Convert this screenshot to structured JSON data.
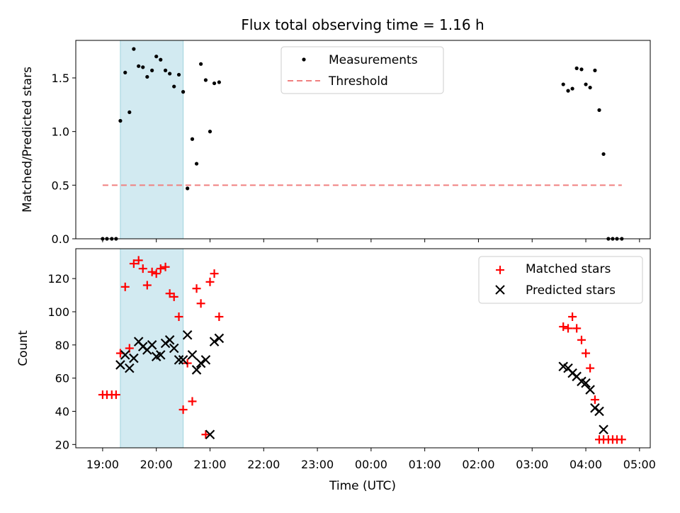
{
  "figure": {
    "title": "Flux total observing time = 1.16 h",
    "xlabel": "Time (UTC)"
  },
  "colors": {
    "measurement": "#000000",
    "threshold": "#f08080",
    "matched": "#ff0000",
    "predicted": "#000000",
    "highlight": "#add8e6"
  },
  "chart_data": [
    {
      "type": "scatter",
      "panel": "top",
      "ylabel": "Matched/Predicted stars",
      "x_unit": "hours since 19:00 UTC axis start",
      "xlim": [
        -0.5,
        10.2
      ],
      "ylim": [
        0.0,
        1.85
      ],
      "yticks": [
        0.0,
        0.5,
        1.0,
        1.5
      ],
      "ytick_labels": [
        "0.0",
        "0.5",
        "1.0",
        "1.5"
      ],
      "shaded_region": [
        0.33,
        1.5
      ],
      "threshold": {
        "name": "Threshold",
        "value": 0.5,
        "x_range": [
          0.0,
          9.67
        ]
      },
      "legend": [
        "Measurements",
        "Threshold"
      ],
      "series": [
        {
          "name": "Measurements",
          "x": [
            0.0,
            0.08,
            0.17,
            0.25,
            0.33,
            0.42,
            0.5,
            0.58,
            0.67,
            0.75,
            0.83,
            0.92,
            1.0,
            1.08,
            1.17,
            1.25,
            1.33,
            1.42,
            1.5,
            1.58,
            1.67,
            1.75,
            1.83,
            1.92,
            2.0,
            2.08,
            2.17,
            8.58,
            8.67,
            8.75,
            8.83,
            8.92,
            9.0,
            9.08,
            9.17,
            9.25,
            9.33,
            9.42,
            9.5,
            9.58,
            9.67
          ],
          "y": [
            0.0,
            0.0,
            0.0,
            0.0,
            1.1,
            1.55,
            1.18,
            1.77,
            1.61,
            1.6,
            1.51,
            1.57,
            1.7,
            1.67,
            1.57,
            1.54,
            1.42,
            1.53,
            1.37,
            0.47,
            0.93,
            0.7,
            1.63,
            1.48,
            1.0,
            1.45,
            1.46,
            1.44,
            1.38,
            1.4,
            1.59,
            1.58,
            1.44,
            1.41,
            1.57,
            1.2,
            0.79,
            0.0,
            0.0,
            0.0,
            0.0
          ]
        }
      ]
    },
    {
      "type": "scatter",
      "panel": "bottom",
      "ylabel": "Count",
      "xlim": [
        -0.5,
        10.2
      ],
      "ylim": [
        18,
        138
      ],
      "yticks": [
        20,
        40,
        60,
        80,
        100,
        120
      ],
      "ytick_labels": [
        "20",
        "40",
        "60",
        "80",
        "100",
        "120"
      ],
      "shaded_region": [
        0.33,
        1.5
      ],
      "xticks": [
        0,
        1,
        2,
        3,
        4,
        5,
        6,
        7,
        8,
        9,
        10
      ],
      "xtick_labels": [
        "19:00",
        "20:00",
        "21:00",
        "22:00",
        "23:00",
        "00:00",
        "01:00",
        "02:00",
        "03:00",
        "04:00",
        "05:00"
      ],
      "legend": [
        "Matched stars",
        "Predicted stars"
      ],
      "series": [
        {
          "name": "Matched stars",
          "marker": "+",
          "x": [
            0.0,
            0.08,
            0.17,
            0.25,
            0.33,
            0.42,
            0.5,
            0.58,
            0.67,
            0.75,
            0.83,
            0.92,
            1.0,
            1.08,
            1.17,
            1.25,
            1.33,
            1.42,
            1.5,
            1.58,
            1.67,
            1.75,
            1.83,
            1.92,
            2.0,
            2.08,
            2.17,
            8.58,
            8.67,
            8.75,
            8.83,
            8.92,
            9.0,
            9.08,
            9.17,
            9.25,
            9.33,
            9.42,
            9.5,
            9.58,
            9.67
          ],
          "y": [
            50,
            50,
            50,
            50,
            75,
            115,
            78,
            129,
            131,
            126,
            116,
            124,
            123,
            126,
            127,
            111,
            109,
            97,
            41,
            69,
            46,
            114,
            105,
            26,
            118,
            123,
            97,
            91,
            90,
            97,
            90,
            83,
            75,
            66,
            47,
            23,
            23,
            23,
            23,
            23,
            23
          ],
          "x_note": "last five matched points sit at 9.33-9.67 region"
        },
        {
          "name": "Predicted stars",
          "marker": "x",
          "x": [
            0.33,
            0.42,
            0.5,
            0.58,
            0.67,
            0.75,
            0.83,
            0.92,
            1.0,
            1.08,
            1.17,
            1.25,
            1.33,
            1.42,
            1.5,
            1.58,
            1.67,
            1.75,
            1.83,
            1.92,
            2.0,
            2.08,
            2.17,
            8.58,
            8.67,
            8.75,
            8.83,
            8.92,
            9.0,
            9.08,
            9.17,
            9.25,
            9.33
          ],
          "y": [
            68,
            74,
            66,
            72,
            82,
            79,
            77,
            80,
            73,
            74,
            81,
            83,
            78,
            71,
            71,
            86,
            74,
            65,
            69,
            71,
            26,
            82,
            84,
            67,
            66,
            63,
            61,
            58,
            57,
            53,
            42,
            40,
            29
          ]
        }
      ]
    }
  ]
}
